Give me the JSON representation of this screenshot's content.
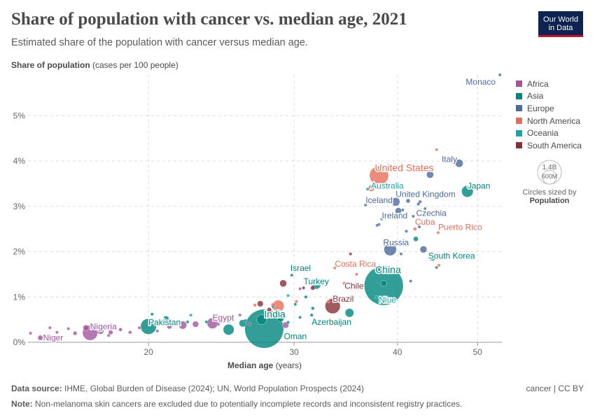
{
  "header": {
    "title": "Share of population with cancer vs. median age, 2021",
    "subtitle": "Estimated share of the population with cancer versus median age.",
    "logo_line1": "Our World",
    "logo_line2": "in Data"
  },
  "axes": {
    "ylabel_bold": "Share of population",
    "ylabel_rest": "(cases per 100 people)",
    "xlabel_bold": "Median age",
    "xlabel_rest": "(years)"
  },
  "legend": {
    "items": [
      {
        "label": "Africa",
        "color": "#a2559c"
      },
      {
        "label": "Asia",
        "color": "#00847e"
      },
      {
        "label": "Europe",
        "color": "#4c6a9c"
      },
      {
        "label": "North America",
        "color": "#e56e5a"
      },
      {
        "label": "Oceania",
        "color": "#18a5a7"
      },
      {
        "label": "South America",
        "color": "#883039"
      }
    ],
    "size_max": "1.4B",
    "size_min": "600M",
    "size_caption": "Circles sized by",
    "size_variable": "Population"
  },
  "footer": {
    "source_label": "Data source:",
    "source_text": "IHME, Global Burden of Disease (2024); UN, World Population Prospects (2024)",
    "note_label": "Note:",
    "note_text": "Non-melanoma skin cancers are excluded due to potentially incomplete records and inconsistent registry practices.",
    "credit": "cancer | CC BY"
  },
  "chart_data": {
    "type": "scatter",
    "x_scale": "log",
    "xlim": [
      14.3,
      53.5
    ],
    "ylim": [
      0,
      5.9
    ],
    "x_ticks": [
      "20",
      "30",
      "40",
      "50"
    ],
    "y_ticks": [
      "0%",
      "1%",
      "2%",
      "3%",
      "4%",
      "5%"
    ],
    "grid": true,
    "legend_position": "right",
    "points": [
      {
        "label": "Monaco",
        "region": "Europe",
        "x": 53.2,
        "y": 5.9,
        "pop": 0.04
      },
      {
        "label": "Italy",
        "region": "Europe",
        "x": 47.5,
        "y": 3.95,
        "pop": 59
      },
      {
        "label": "Japan",
        "region": "Asia",
        "x": 48.6,
        "y": 3.33,
        "pop": 125
      },
      {
        "label": "United States",
        "region": "North America",
        "x": 38.0,
        "y": 3.68,
        "pop": 335
      },
      {
        "label": "Australia",
        "region": "Oceania",
        "x": 37.6,
        "y": 3.45,
        "pop": 26
      },
      {
        "label": "United Kingdom",
        "region": "Europe",
        "x": 39.8,
        "y": 3.1,
        "pop": 67
      },
      {
        "label": "Iceland",
        "region": "Europe",
        "x": 36.6,
        "y": 3.03,
        "pop": 0.37
      },
      {
        "label": "Ireland",
        "region": "Europe",
        "x": 38.3,
        "y": 2.72,
        "pop": 5
      },
      {
        "label": "Czechia",
        "region": "Europe",
        "x": 43.3,
        "y": 2.85,
        "pop": 10.5
      },
      {
        "label": "Cuba",
        "region": "North America",
        "x": 42.0,
        "y": 2.5,
        "pop": 11
      },
      {
        "label": "Puerto Rico",
        "region": "North America",
        "x": 44.8,
        "y": 2.42,
        "pop": 3.2
      },
      {
        "label": "Russia",
        "region": "Europe",
        "x": 39.2,
        "y": 2.05,
        "pop": 145
      },
      {
        "label": "South Korea",
        "region": "Asia",
        "x": 44.1,
        "y": 1.88,
        "pop": 51
      },
      {
        "label": "Israel",
        "region": "Asia",
        "x": 29.8,
        "y": 1.48,
        "pop": 9
      },
      {
        "label": "Costa Rica",
        "region": "North America",
        "x": 33.6,
        "y": 1.64,
        "pop": 5
      },
      {
        "label": "China",
        "region": "Asia",
        "x": 38.5,
        "y": 1.25,
        "pop": 1420
      },
      {
        "label": "Turkey",
        "region": "Asia",
        "x": 31.9,
        "y": 1.28,
        "pop": 85
      },
      {
        "label": "Chile",
        "region": "South America",
        "x": 35.2,
        "y": 1.2,
        "pop": 19
      },
      {
        "label": "Niue",
        "region": "Oceania",
        "x": 37.7,
        "y": 1.0,
        "pop": 0.002
      },
      {
        "label": "Brazil",
        "region": "South America",
        "x": 33.4,
        "y": 0.8,
        "pop": 214
      },
      {
        "label": "Azerbaijan",
        "region": "Asia",
        "x": 31.5,
        "y": 0.6,
        "pop": 10
      },
      {
        "label": "India",
        "region": "Asia",
        "x": 27.6,
        "y": 0.3,
        "pop": 1410
      },
      {
        "label": "Oman",
        "region": "Asia",
        "x": 29.5,
        "y": 0.44,
        "pop": 4.5
      },
      {
        "label": "Egypt",
        "region": "Africa",
        "x": 23.9,
        "y": 0.42,
        "pop": 110
      },
      {
        "label": "Pakistan",
        "region": "Asia",
        "x": 20.0,
        "y": 0.35,
        "pop": 231
      },
      {
        "label": "Nigeria",
        "region": "Africa",
        "x": 17.0,
        "y": 0.21,
        "pop": 213
      },
      {
        "label": "Niger",
        "region": "Africa",
        "x": 14.8,
        "y": 0.1,
        "pop": 25
      }
    ],
    "unlabeled_points": [
      [
        40.1,
        2.9,
        "Europe",
        38
      ],
      [
        41.0,
        2.45,
        "Europe",
        9
      ],
      [
        42.5,
        2.55,
        "Europe",
        10
      ],
      [
        43.8,
        3.7,
        "Europe",
        47
      ],
      [
        42.6,
        3.1,
        "Europe",
        11
      ],
      [
        41.2,
        3.12,
        "Europe",
        17
      ],
      [
        40.6,
        2.92,
        "Europe",
        8.7
      ],
      [
        42.4,
        3.05,
        "Europe",
        10.4
      ],
      [
        43.2,
        2.95,
        "Europe",
        6.8
      ],
      [
        41.8,
        2.78,
        "Europe",
        4
      ],
      [
        38.0,
        2.6,
        "Europe",
        2
      ],
      [
        37.8,
        2.58,
        "Europe",
        1.3
      ],
      [
        43.0,
        2.05,
        "Europe",
        44
      ],
      [
        44.6,
        1.65,
        "Europe",
        3
      ],
      [
        40.4,
        1.95,
        "Europe",
        7
      ],
      [
        41.5,
        1.35,
        "Europe",
        4
      ],
      [
        43.5,
        3.8,
        "Europe",
        0.04
      ],
      [
        45.8,
        2.8,
        "Europe",
        0.4
      ],
      [
        44.6,
        4.25,
        "North America",
        0.06
      ],
      [
        37.2,
        3.4,
        "North America",
        38
      ],
      [
        44.9,
        1.7,
        "North America",
        0.1
      ],
      [
        35.7,
        1.5,
        "North America",
        0.3
      ],
      [
        34.5,
        1.3,
        "North America",
        11
      ],
      [
        33.0,
        0.9,
        "North America",
        6
      ],
      [
        28.7,
        0.8,
        "North America",
        128
      ],
      [
        28.3,
        0.82,
        "North America",
        17
      ],
      [
        26.9,
        0.82,
        "North America",
        10
      ],
      [
        30.2,
        0.9,
        "North America",
        1
      ],
      [
        40.0,
        1.55,
        "Asia",
        8
      ],
      [
        42.1,
        2.28,
        "Asia",
        23
      ],
      [
        38.5,
        1.3,
        "Asia",
        33
      ],
      [
        30.1,
        0.84,
        "Asia",
        5
      ],
      [
        31.6,
        0.75,
        "Asia",
        11
      ],
      [
        30.5,
        0.55,
        "Asia",
        3
      ],
      [
        26.0,
        0.42,
        "Asia",
        50
      ],
      [
        25.0,
        0.28,
        "Asia",
        110
      ],
      [
        24.7,
        0.47,
        "Asia",
        11
      ],
      [
        22.3,
        0.45,
        "Asia",
        5
      ],
      [
        21.0,
        0.52,
        "Asia",
        30
      ],
      [
        20.2,
        0.62,
        "Asia",
        2
      ],
      [
        28.9,
        0.52,
        "Asia",
        36
      ],
      [
        35.0,
        0.65,
        "Asia",
        70
      ],
      [
        27.4,
        0.5,
        "Asia",
        90
      ],
      [
        26.2,
        0.48,
        "Asia",
        2
      ],
      [
        23.5,
        0.45,
        "Asia",
        7
      ],
      [
        31.0,
        1.0,
        "Asia",
        10
      ],
      [
        31.6,
        1.2,
        "South America",
        19
      ],
      [
        33.8,
        1.0,
        "South America",
        3.4
      ],
      [
        35.1,
        1.95,
        "South America",
        0.4
      ],
      [
        29.1,
        1.3,
        "South America",
        46
      ],
      [
        30.8,
        1.2,
        "South America",
        9
      ],
      [
        27.3,
        0.85,
        "South America",
        34
      ],
      [
        28.0,
        0.72,
        "South America",
        18
      ],
      [
        28.3,
        0.78,
        "Oceania",
        5
      ],
      [
        20.8,
        0.4,
        "Oceania",
        9
      ],
      [
        22.5,
        0.6,
        "Oceania",
        0.2
      ],
      [
        25.0,
        0.45,
        "Oceania",
        0.9
      ],
      [
        29.5,
        1.03,
        "Oceania",
        0.1
      ],
      [
        36.8,
        3.38,
        "Oceania",
        0.05
      ],
      [
        22.0,
        0.38,
        "Africa",
        60
      ],
      [
        21.2,
        0.35,
        "Africa",
        25
      ],
      [
        18.0,
        0.22,
        "Africa",
        20
      ],
      [
        17.5,
        0.25,
        "Africa",
        40
      ],
      [
        16.8,
        0.32,
        "Africa",
        30
      ],
      [
        16.3,
        0.2,
        "Africa",
        15
      ],
      [
        18.5,
        0.28,
        "Africa",
        12
      ],
      [
        19.0,
        0.22,
        "Africa",
        11
      ],
      [
        15.5,
        0.22,
        "Africa",
        8
      ],
      [
        15.2,
        0.32,
        "Africa",
        6
      ],
      [
        14.4,
        0.2,
        "Africa",
        2
      ],
      [
        16.0,
        0.3,
        "Africa",
        9
      ],
      [
        17.9,
        0.15,
        "Africa",
        5
      ],
      [
        19.5,
        0.32,
        "Africa",
        4
      ],
      [
        20.5,
        0.25,
        "Africa",
        3
      ],
      [
        24.3,
        0.4,
        "Africa",
        2
      ],
      [
        25.8,
        0.6,
        "Africa",
        1
      ],
      [
        26.5,
        0.4,
        "Africa",
        2
      ],
      [
        30.5,
        1.18,
        "Africa",
        0.1
      ],
      [
        27.8,
        0.55,
        "Africa",
        0.7
      ],
      [
        29.3,
        0.38,
        "Africa",
        37
      ],
      [
        22.8,
        0.4,
        "Africa",
        35
      ]
    ]
  }
}
